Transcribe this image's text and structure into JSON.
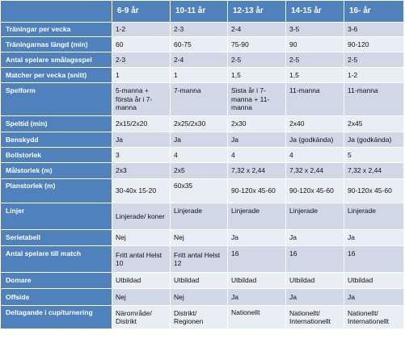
{
  "colors": {
    "header_bg": "#4f81bd",
    "header_text": "#ffffff",
    "band_dark": "#d0d8e8",
    "band_light": "#e9edf4"
  },
  "table": {
    "columns": [
      "",
      "6-9 år",
      "10-11 år",
      "12-13 år",
      "14-15 år",
      "16- år"
    ],
    "rows": [
      {
        "label": "Träningar per vecka",
        "cells": [
          "1-2",
          "2-3",
          "2-4",
          "3-5",
          "3-6"
        ]
      },
      {
        "label": "Träningarnas längd (min)",
        "cells": [
          "60",
          "60-75",
          "75-90",
          "90",
          "90-120"
        ]
      },
      {
        "label": "Antal spelare smålagsspel",
        "cells": [
          "2-3",
          "2-4",
          "2-5",
          "2-5",
          "2-5"
        ]
      },
      {
        "label": "Matcher per vecka (snitt)",
        "cells": [
          "1",
          "1",
          "1,5",
          "1,5",
          "1-2"
        ]
      },
      {
        "label": "Spelform",
        "cells": [
          "5-manna + första år i 7-manna",
          "7-manna",
          "Sista år i 7-manna + 11-manna",
          "11-manna",
          "11-manna"
        ]
      },
      {
        "label": "Speltid (min)",
        "cells": [
          "2x15/2x20",
          "2x25/2x30",
          "2x30",
          "2x40",
          "2x45"
        ]
      },
      {
        "label": "Benskydd",
        "cells": [
          "Ja",
          "Ja",
          "Ja",
          "Ja (godkända)",
          "Ja (godkända)"
        ]
      },
      {
        "label": "Bollstorlek",
        "cells": [
          "3",
          "4",
          "4",
          "4",
          "5"
        ]
      },
      {
        "label": "Målstorlek (m)",
        "cells": [
          "2x3",
          "2x5",
          "7,32 x 2,44",
          "7,32 x 2,44",
          "7,32 x 2,44"
        ]
      },
      {
        "label": "Planstorlek (m)",
        "cells": [
          "30-40x 15-20",
          "60x35",
          "90-120x 45-60",
          "90-120x 45-60",
          "90-120x 45-60"
        ]
      },
      {
        "label": "Linjer",
        "cells": [
          "Linjerade/ koner",
          "Linjerade",
          "Linjerade",
          "Linjerade",
          "Linjerade"
        ]
      },
      {
        "label": "Serietabell",
        "cells": [
          "Nej",
          "Nej",
          "Ja",
          "Ja",
          "Ja"
        ]
      },
      {
        "label": "Antal spelare till match",
        "cells": [
          "Fritt antal Helst 10",
          "Fritt antal Helst 12",
          "16",
          "16",
          "16"
        ]
      },
      {
        "label": "Domare",
        "cells": [
          "Utbildad",
          "Utbildad",
          "Utbildad",
          "Utbildad",
          "Utbildad"
        ]
      },
      {
        "label": "Offside",
        "cells": [
          "Nej",
          "Nej",
          "Ja",
          "Ja",
          "Ja"
        ]
      },
      {
        "label": "Deltagande i cup/turnering",
        "cells": [
          "Närområde/ Distrikt",
          "Distrikt/ Regionen",
          "Nationellt",
          "Nationellt/ Internationellt",
          "Nationellt/ Internationellt"
        ]
      }
    ]
  }
}
